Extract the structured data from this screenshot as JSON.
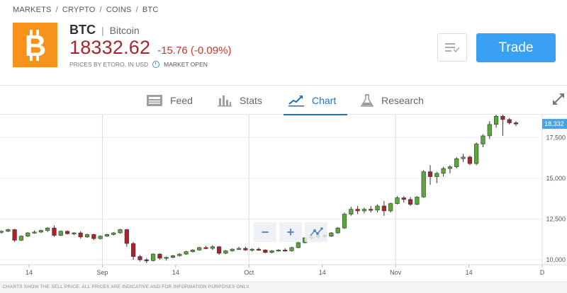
{
  "breadcrumb": {
    "items": [
      "MARKETS",
      "CRYPTO",
      "COINS",
      "BTC"
    ]
  },
  "instrument": {
    "ticker": "BTC",
    "name": "Bitcoin",
    "price": "18332.62",
    "change": "-15.76 (-0.09%)",
    "price_source": "PRICES BY ETORO, IN USD",
    "market_status": "MARKET OPEN",
    "logo_color": "#f7931a"
  },
  "actions": {
    "trade_label": "Trade",
    "watchlist_icon": "watchlist-check-icon"
  },
  "tabs": [
    {
      "label": "Feed",
      "icon": "feed-icon"
    },
    {
      "label": "Stats",
      "icon": "stats-icon"
    },
    {
      "label": "Chart",
      "icon": "chart-icon",
      "active": true
    },
    {
      "label": "Research",
      "icon": "flask-icon"
    }
  ],
  "chart_data": {
    "type": "candlestick",
    "x_tick_labels": [
      "14",
      "Sep",
      "14",
      "Oct",
      "14",
      "Nov",
      "14",
      "D"
    ],
    "y_tick_labels": [
      "17,500",
      "15,000",
      "12,500",
      "10,000"
    ],
    "y_ticks": [
      17500,
      15000,
      12500,
      10000
    ],
    "ylim": [
      9700,
      18900
    ],
    "current_price_label": "18,332",
    "current_price": 18332,
    "candles": [
      [
        11700,
        11800,
        11600,
        11750
      ],
      [
        11750,
        11900,
        11700,
        11850
      ],
      [
        11850,
        11900,
        11100,
        11200
      ],
      [
        11200,
        11500,
        11150,
        11450
      ],
      [
        11450,
        11700,
        11400,
        11650
      ],
      [
        11650,
        11800,
        11600,
        11700
      ],
      [
        11700,
        11850,
        11650,
        11800
      ],
      [
        11800,
        12000,
        11700,
        11950
      ],
      [
        11950,
        12100,
        11400,
        11500
      ],
      [
        11500,
        11800,
        11450,
        11750
      ],
      [
        11750,
        11800,
        11550,
        11600
      ],
      [
        11600,
        11700,
        11500,
        11650
      ],
      [
        11650,
        11750,
        11300,
        11400
      ],
      [
        11400,
        11600,
        11350,
        11550
      ],
      [
        11550,
        11600,
        11200,
        11300
      ],
      [
        11300,
        11500,
        11250,
        11450
      ],
      [
        11450,
        11600,
        11400,
        11550
      ],
      [
        11550,
        11700,
        11500,
        11650
      ],
      [
        11650,
        11900,
        11600,
        11850
      ],
      [
        11850,
        11900,
        10800,
        11000
      ],
      [
        11000,
        11100,
        10000,
        10200
      ],
      [
        10200,
        10300,
        9900,
        10000
      ],
      [
        10000,
        10100,
        9800,
        9950
      ],
      [
        9950,
        10400,
        9900,
        10350
      ],
      [
        10350,
        10400,
        10000,
        10100
      ],
      [
        10100,
        10200,
        9950,
        10150
      ],
      [
        10150,
        10300,
        10100,
        10250
      ],
      [
        10250,
        10400,
        10200,
        10350
      ],
      [
        10350,
        10550,
        10300,
        10500
      ],
      [
        10500,
        10650,
        10450,
        10600
      ],
      [
        10600,
        10800,
        10550,
        10750
      ],
      [
        10750,
        10850,
        10650,
        10700
      ],
      [
        10700,
        10900,
        10600,
        10800
      ],
      [
        10800,
        10850,
        10300,
        10400
      ],
      [
        10400,
        10600,
        10350,
        10550
      ],
      [
        10550,
        10700,
        10500,
        10650
      ],
      [
        10650,
        10800,
        10600,
        10700
      ],
      [
        10700,
        10800,
        10550,
        10600
      ],
      [
        10600,
        10700,
        10500,
        10650
      ],
      [
        10650,
        10750,
        10550,
        10600
      ],
      [
        10600,
        10650,
        10400,
        10450
      ],
      [
        10450,
        10600,
        10400,
        10550
      ],
      [
        10550,
        10650,
        10500,
        10600
      ],
      [
        10600,
        10700,
        10500,
        10550
      ],
      [
        10550,
        10800,
        10500,
        10750
      ],
      [
        10750,
        11150,
        10700,
        11050
      ],
      [
        11050,
        11400,
        11000,
        11350
      ],
      [
        11350,
        11500,
        11250,
        11400
      ],
      [
        11400,
        11550,
        11300,
        11500
      ],
      [
        11500,
        11600,
        11350,
        11450
      ],
      [
        11450,
        11700,
        11400,
        11650
      ],
      [
        11650,
        12000,
        11600,
        11950
      ],
      [
        11950,
        12900,
        11900,
        12800
      ],
      [
        12800,
        13250,
        12700,
        13100
      ],
      [
        13100,
        13300,
        12800,
        13000
      ],
      [
        13000,
        13200,
        12850,
        13100
      ],
      [
        13100,
        13300,
        12900,
        13050
      ],
      [
        13050,
        13400,
        12900,
        13300
      ],
      [
        13300,
        13600,
        12700,
        13000
      ],
      [
        13000,
        13500,
        12900,
        13450
      ],
      [
        13450,
        13900,
        13400,
        13800
      ],
      [
        13800,
        13900,
        13500,
        13700
      ],
      [
        13700,
        13850,
        13300,
        13400
      ],
      [
        13400,
        13900,
        13350,
        13850
      ],
      [
        13850,
        15500,
        13800,
        15400
      ],
      [
        15400,
        15800,
        14600,
        15100
      ],
      [
        15100,
        15400,
        14700,
        15300
      ],
      [
        15300,
        15700,
        15100,
        15600
      ],
      [
        15600,
        15800,
        15300,
        15700
      ],
      [
        15700,
        16300,
        15600,
        16200
      ],
      [
        16200,
        16500,
        16000,
        16300
      ],
      [
        16300,
        16400,
        15800,
        15900
      ],
      [
        15900,
        17200,
        15800,
        17100
      ],
      [
        17100,
        17700,
        16900,
        17600
      ],
      [
        17600,
        18500,
        17400,
        18300
      ],
      [
        18300,
        19000,
        18100,
        18800
      ],
      [
        18800,
        18900,
        17600,
        18600
      ],
      [
        18600,
        18700,
        18300,
        18400
      ],
      [
        18400,
        18500,
        18200,
        18332
      ]
    ]
  },
  "zoom": {
    "zoom_out": "−",
    "zoom_in": "+"
  },
  "footer": {
    "note": "CHARTS SHOW THE SELL PRICE. ALL PRICES ARE INDICATIVE AND FOR INFORMATION PURPOSES ONLY."
  },
  "colors": {
    "up": "#5aa83a",
    "down": "#a8242c",
    "accent": "#1a73c8",
    "trade": "#38a1f3",
    "price": "#a8242c"
  }
}
